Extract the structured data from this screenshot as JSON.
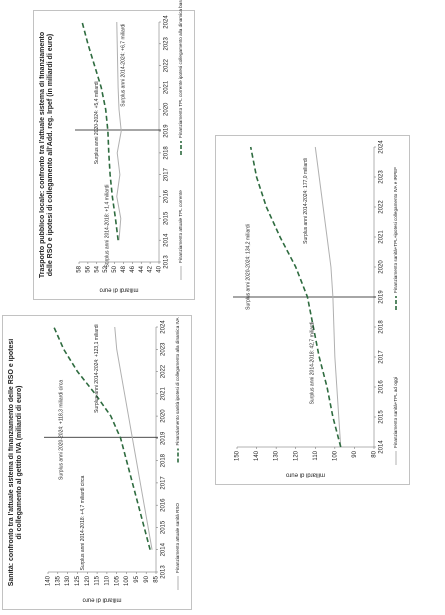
{
  "chart_data": [
    {
      "type": "line",
      "title": "Trasporto pubblico locale: confronto tra l'attuale sistema di finanziamento delle RSO e ipotesi di collegamento all'Add. reg. Irpef (in miliardi di euro)",
      "y_label": "miliardi di euro",
      "x": [
        2014,
        2015,
        2016,
        2017,
        2018,
        2019,
        2020,
        2021,
        2022,
        2023,
        2024
      ],
      "xlim": [
        2013,
        2024
      ],
      "xticks": [
        2013,
        2014,
        2015,
        2016,
        2017,
        2018,
        2019,
        2020,
        2021,
        2022,
        2023,
        2024
      ],
      "ylim": [
        40,
        58
      ],
      "yticks": [
        40,
        42,
        44,
        46,
        48,
        50,
        52,
        54,
        56,
        58
      ],
      "series": [
        {
          "name": "Finanziamento attuale TPL corrente",
          "color": "#b0b0b0",
          "dash": false,
          "values": [
            49.0,
            48.6,
            49.5,
            48.8,
            49.4,
            48.5,
            49.0,
            49.2,
            49.3,
            49.4,
            49.5
          ]
        },
        {
          "name": "Finanziamento TPL corrente ipotesi collegamento alla dinamica base imponibile Add. IRPEF",
          "color": "#2e6b3f",
          "dash": true,
          "values": [
            49.2,
            49.8,
            50.5,
            51.0,
            51.3,
            51.5,
            52.0,
            53.0,
            54.5,
            56.0,
            57.3
          ]
        }
      ],
      "annotations": [
        "Surplus anni 2014-2018: +1,4 miliardi",
        "Surplus anni 2020-2024: +5,4 miliardi",
        "Surplus anni 2014-2024: +6,7 miliardi"
      ]
    },
    {
      "type": "line",
      "title": "Sanità: confronto tra l'attuale sistema di finanziamento delle RSO e ipotesi di collegamento al gettito IVA (miliardi di euro)",
      "y_label": "miliardi di euro",
      "x": [
        2014,
        2015,
        2016,
        2017,
        2018,
        2019,
        2020,
        2021,
        2022,
        2023,
        2024
      ],
      "xlim": [
        2013,
        2024
      ],
      "xticks": [
        2013,
        2014,
        2015,
        2016,
        2017,
        2018,
        2019,
        2020,
        2021,
        2022,
        2023,
        2024
      ],
      "ylim": [
        85,
        140
      ],
      "yticks": [
        85,
        90,
        95,
        100,
        105,
        110,
        115,
        120,
        125,
        130,
        135,
        140
      ],
      "series": [
        {
          "name": "Finanziamento attuale sanità RSO",
          "color": "#b0b0b0",
          "dash": false,
          "values": [
            87,
            89,
            91,
            93,
            95,
            97,
            99,
            101,
            103,
            105,
            106
          ]
        },
        {
          "name": "Finanziamento sanità ipotesi di collegamento alla dinamica IVA",
          "color": "#2e6b3f",
          "dash": true,
          "values": [
            88,
            91,
            94,
            97,
            100,
            103,
            108,
            116,
            125,
            132,
            137
          ]
        }
      ],
      "annotations": [
        "Surplus anni 2014-2018: +4,7 miliardi circa",
        "Surplus anni 2020-2024: +118,3 miliardi circa",
        "Surplus anni 2014-2024: +123,1 miliardi"
      ]
    },
    {
      "type": "line",
      "y_label": "miliardi di euro",
      "x": [
        2014,
        2015,
        2016,
        2017,
        2018,
        2019,
        2020,
        2021,
        2022,
        2023,
        2024
      ],
      "xlim": [
        2014,
        2024
      ],
      "xticks": [
        2014,
        2015,
        2016,
        2017,
        2018,
        2019,
        2020,
        2021,
        2022,
        2023,
        2024
      ],
      "ylim": [
        80,
        150
      ],
      "yticks": [
        80,
        90,
        100,
        110,
        120,
        130,
        140,
        150
      ],
      "series": [
        {
          "name": "Finanziamento sanità+TPL ad oggi",
          "color": "#b0b0b0",
          "dash": false,
          "values": [
            97,
            98,
            99,
            100,
            100.5,
            101,
            102,
            104,
            106,
            108,
            110
          ]
        },
        {
          "name": "Finanziamento sanità+TPL+ipotesi collegamento IVA e IRPEF",
          "color": "#2e6b3f",
          "dash": true,
          "values": [
            97,
            101,
            104,
            108,
            111,
            114,
            120,
            128,
            135,
            140,
            143
          ]
        }
      ],
      "annotations": [
        "Surplus anni 2014-2018: 42,7 miliardi",
        "Surplus anni 2020-2024: 134,2 miliardi",
        "Surplus anni 2014-2024: 177,0 miliardi"
      ]
    }
  ]
}
